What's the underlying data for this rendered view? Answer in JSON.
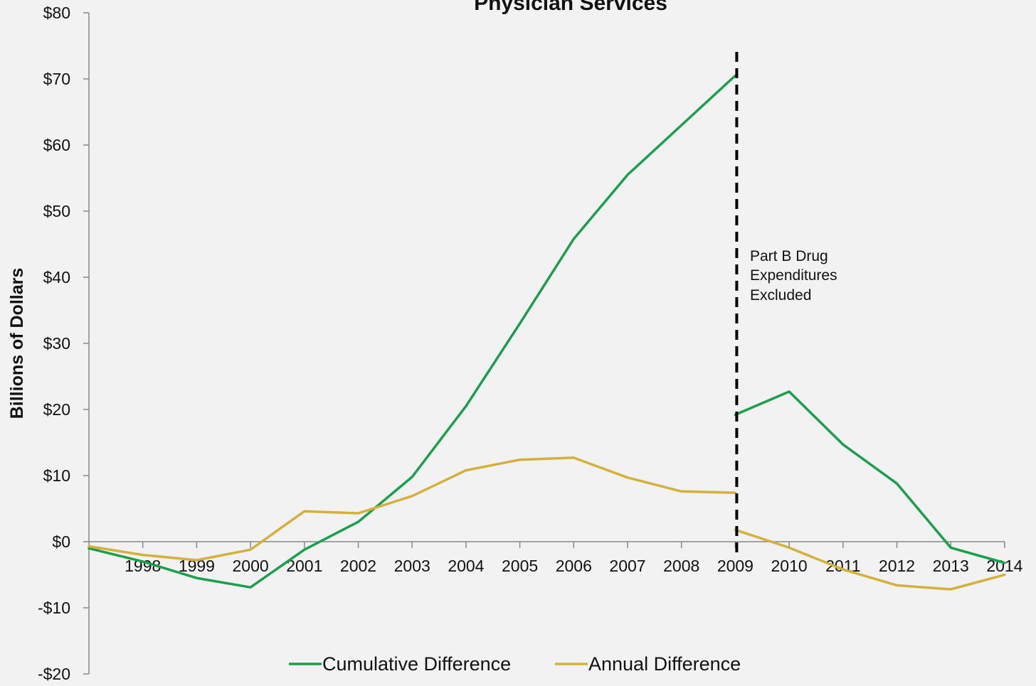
{
  "chart_data": {
    "type": "line",
    "title": "Physician Services",
    "ylabel": "Billions of Dollars",
    "xlabel": "",
    "ylim": [
      -20,
      80
    ],
    "yticks": [
      -20,
      -10,
      0,
      10,
      20,
      30,
      40,
      50,
      60,
      70,
      80
    ],
    "ytick_labels": [
      "-$20",
      "-$10",
      "$0",
      "$10",
      "$20",
      "$30",
      "$40",
      "$50",
      "$60",
      "$70",
      "$80"
    ],
    "x_start": 1997,
    "xtick_labels": [
      "1998",
      "1999",
      "2000",
      "2001",
      "2002",
      "2003",
      "2004",
      "2005",
      "2006",
      "2007",
      "2008",
      "2009",
      "2010",
      "2011",
      "2012",
      "2013",
      "2014"
    ],
    "series": [
      {
        "name": "Cumulative Difference",
        "color": "#1aa04a",
        "segments": [
          {
            "x": [
              1997,
              1998,
              1999,
              2000,
              2001,
              2002,
              2003,
              2004,
              2005,
              2006,
              2007,
              2008,
              2009
            ],
            "y": [
              -1,
              -3,
              -5.5,
              -6.9,
              -1.2,
              3.0,
              9.8,
              20.5,
              33.0,
              45.8,
              55.5,
              63.0,
              70.5
            ]
          },
          {
            "x": [
              2009,
              2010,
              2011,
              2012,
              2013,
              2014
            ],
            "y": [
              19.2,
              22.7,
              14.7,
              8.8,
              -0.9,
              -3.2
            ]
          }
        ]
      },
      {
        "name": "Annual Difference",
        "color": "#d4b13a",
        "segments": [
          {
            "x": [
              1997,
              1998,
              1999,
              2000,
              2001,
              2002,
              2003,
              2004,
              2005,
              2006,
              2007,
              2008,
              2009
            ],
            "y": [
              -0.7,
              -2.0,
              -2.8,
              -1.2,
              4.6,
              4.3,
              6.9,
              10.8,
              12.4,
              12.7,
              9.7,
              7.6,
              7.4
            ]
          },
          {
            "x": [
              2009,
              2010,
              2011,
              2012,
              2013,
              2014
            ],
            "y": [
              1.8,
              -0.9,
              -4.2,
              -6.6,
              -7.2,
              -5.0
            ]
          }
        ]
      }
    ],
    "annotation": {
      "lines": [
        "Part B Drug",
        "Expenditures",
        "Excluded"
      ],
      "at_x": 2009,
      "line_color": "#000000"
    },
    "legend": {
      "placement": "bottom",
      "items": [
        "Cumulative Difference",
        "Annual Difference"
      ]
    },
    "grid": false
  }
}
